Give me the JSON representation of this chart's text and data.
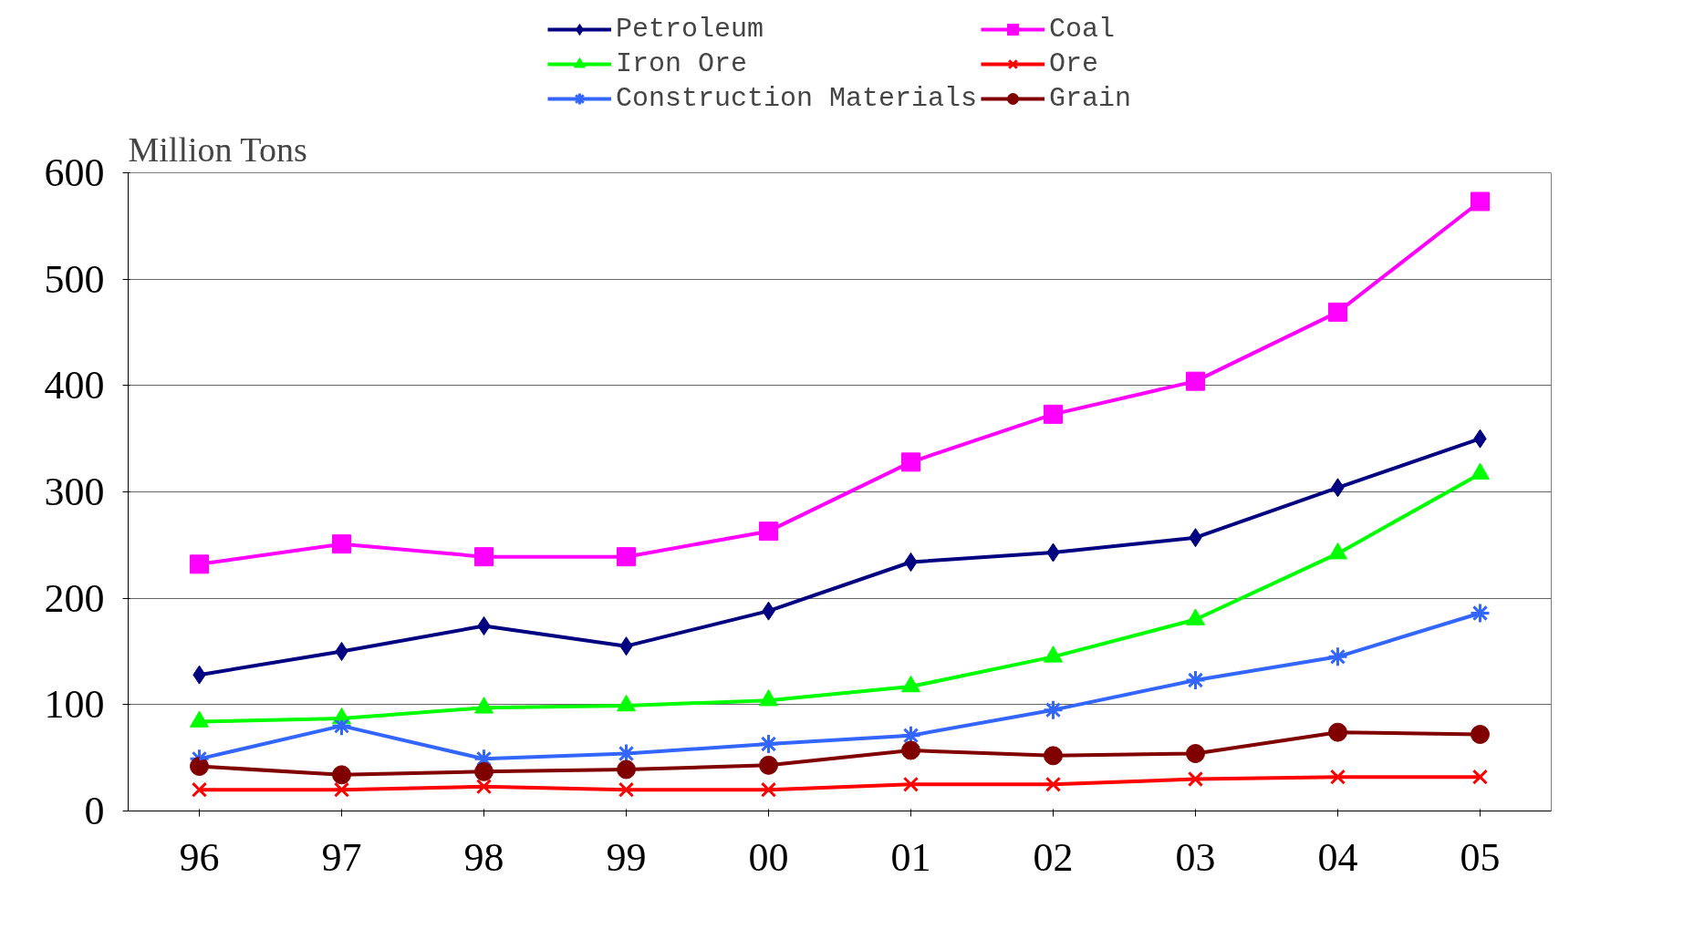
{
  "chart_data": {
    "type": "line",
    "ylabel": "Million Tons",
    "categories": [
      "96",
      "97",
      "98",
      "99",
      "00",
      "01",
      "02",
      "03",
      "04",
      "05"
    ],
    "ylim": [
      0,
      600
    ],
    "yticks": [
      0,
      100,
      200,
      300,
      400,
      500,
      600
    ],
    "grid": "y",
    "legend": "top",
    "series": [
      {
        "name": "Petroleum",
        "color": "#000080",
        "marker": "diamond",
        "values": [
          128,
          150,
          174,
          155,
          188,
          234,
          243,
          257,
          304,
          350
        ]
      },
      {
        "name": "Coal",
        "color": "#ff00ff",
        "marker": "square",
        "values": [
          232,
          251,
          239,
          239,
          263,
          328,
          373,
          404,
          469,
          573
        ]
      },
      {
        "name": "Iron Ore",
        "color": "#00ff00",
        "marker": "triangle",
        "values": [
          84,
          87,
          97,
          99,
          104,
          117,
          145,
          180,
          242,
          317
        ]
      },
      {
        "name": "Ore",
        "color": "#ff0000",
        "marker": "x",
        "values": [
          20,
          20,
          23,
          20,
          20,
          25,
          25,
          30,
          32,
          32
        ]
      },
      {
        "name": "Construction Materials",
        "color": "#3366ff",
        "marker": "cross",
        "values": [
          49,
          80,
          49,
          54,
          63,
          71,
          95,
          123,
          145,
          186
        ]
      },
      {
        "name": "Grain",
        "color": "#800000",
        "marker": "circle",
        "values": [
          42,
          34,
          37,
          39,
          43,
          57,
          52,
          54,
          74,
          72
        ]
      }
    ]
  }
}
